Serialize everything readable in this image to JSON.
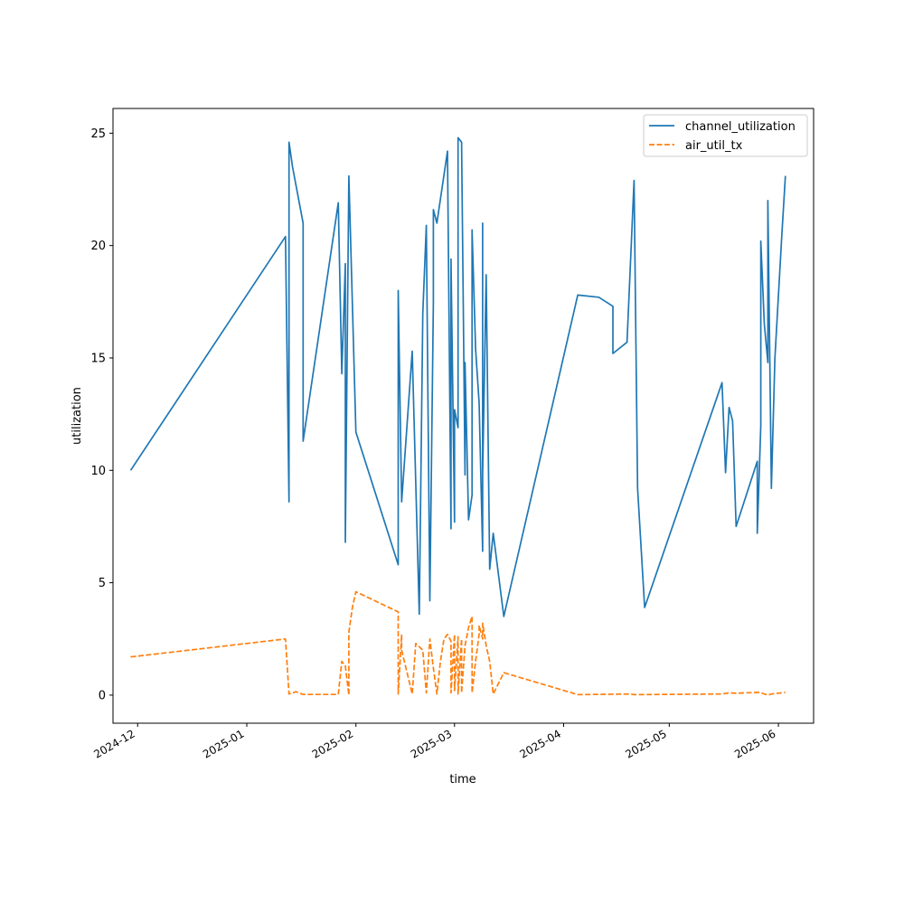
{
  "chart_data": {
    "type": "line",
    "xlabel": "time",
    "ylabel": "utilization",
    "xlim": [
      "2024-11-24",
      "2025-06-11"
    ],
    "ylim": [
      -1.25,
      26.1
    ],
    "x_ticks": [
      {
        "date": "2024-12-01",
        "label": "2024-12"
      },
      {
        "date": "2025-01-01",
        "label": "2025-01"
      },
      {
        "date": "2025-02-01",
        "label": "2025-02"
      },
      {
        "date": "2025-03-01",
        "label": "2025-03"
      },
      {
        "date": "2025-04-01",
        "label": "2025-04"
      },
      {
        "date": "2025-05-01",
        "label": "2025-05"
      },
      {
        "date": "2025-06-01",
        "label": "2025-06"
      }
    ],
    "y_ticks": [
      0,
      5,
      10,
      15,
      20,
      25
    ],
    "grid": false,
    "legend_position": "top-right",
    "series": [
      {
        "name": "channel_utilization",
        "color": "#1f77b4",
        "style": "solid",
        "points": [
          [
            "2024-11-29",
            10.0
          ],
          [
            "2025-01-12",
            20.4
          ],
          [
            "2025-01-13",
            8.6
          ],
          [
            "2025-01-13",
            24.6
          ],
          [
            "2025-01-14",
            23.5
          ],
          [
            "2025-01-17",
            21.0
          ],
          [
            "2025-01-17",
            11.3
          ],
          [
            "2025-01-27",
            21.9
          ],
          [
            "2025-01-28",
            14.3
          ],
          [
            "2025-01-29",
            19.2
          ],
          [
            "2025-01-29",
            6.8
          ],
          [
            "2025-01-30",
            23.1
          ],
          [
            "2025-02-01",
            11.7
          ],
          [
            "2025-02-13",
            5.8
          ],
          [
            "2025-02-13",
            18.0
          ],
          [
            "2025-02-14",
            8.6
          ],
          [
            "2025-02-17",
            15.3
          ],
          [
            "2025-02-19",
            3.6
          ],
          [
            "2025-02-20",
            17.0
          ],
          [
            "2025-02-21",
            20.9
          ],
          [
            "2025-02-22",
            4.2
          ],
          [
            "2025-02-23",
            17.5
          ],
          [
            "2025-02-23",
            21.6
          ],
          [
            "2025-02-24",
            21.0
          ],
          [
            "2025-02-27",
            24.2
          ],
          [
            "2025-02-28",
            7.4
          ],
          [
            "2025-02-28",
            19.4
          ],
          [
            "2025-03-01",
            7.7
          ],
          [
            "2025-03-01",
            12.7
          ],
          [
            "2025-03-02",
            11.9
          ],
          [
            "2025-03-02",
            24.8
          ],
          [
            "2025-03-03",
            24.6
          ],
          [
            "2025-03-04",
            9.8
          ],
          [
            "2025-03-04",
            14.8
          ],
          [
            "2025-03-05",
            7.8
          ],
          [
            "2025-03-06",
            8.9
          ],
          [
            "2025-03-06",
            20.7
          ],
          [
            "2025-03-07",
            15.4
          ],
          [
            "2025-03-08",
            13.0
          ],
          [
            "2025-03-09",
            6.4
          ],
          [
            "2025-03-09",
            21.0
          ],
          [
            "2025-03-09",
            9.8
          ],
          [
            "2025-03-10",
            18.7
          ],
          [
            "2025-03-11",
            5.6
          ],
          [
            "2025-03-12",
            7.2
          ],
          [
            "2025-03-15",
            3.5
          ],
          [
            "2025-04-05",
            17.8
          ],
          [
            "2025-04-11",
            17.7
          ],
          [
            "2025-04-15",
            17.3
          ],
          [
            "2025-04-15",
            15.2
          ],
          [
            "2025-04-19",
            15.7
          ],
          [
            "2025-04-21",
            22.9
          ],
          [
            "2025-04-22",
            9.2
          ],
          [
            "2025-04-24",
            3.9
          ],
          [
            "2025-05-16",
            13.9
          ],
          [
            "2025-05-17",
            9.9
          ],
          [
            "2025-05-18",
            12.8
          ],
          [
            "2025-05-19",
            12.2
          ],
          [
            "2025-05-20",
            7.5
          ],
          [
            "2025-05-26",
            10.4
          ],
          [
            "2025-05-26",
            7.2
          ],
          [
            "2025-05-27",
            12.0
          ],
          [
            "2025-05-27",
            20.2
          ],
          [
            "2025-05-28",
            16.5
          ],
          [
            "2025-05-29",
            14.8
          ],
          [
            "2025-05-29",
            22.0
          ],
          [
            "2025-05-30",
            9.2
          ],
          [
            "2025-05-31",
            15.0
          ],
          [
            "2025-06-02",
            20.5
          ],
          [
            "2025-06-03",
            23.1
          ]
        ]
      },
      {
        "name": "air_util_tx",
        "color": "#ff7f0e",
        "style": "dashed",
        "points": [
          [
            "2024-11-29",
            1.7
          ],
          [
            "2025-01-12",
            2.5
          ],
          [
            "2025-01-13",
            0.05
          ],
          [
            "2025-01-15",
            0.15
          ],
          [
            "2025-01-17",
            0.03
          ],
          [
            "2025-01-27",
            0.03
          ],
          [
            "2025-01-28",
            1.5
          ],
          [
            "2025-01-29",
            1.3
          ],
          [
            "2025-01-30",
            0.0
          ],
          [
            "2025-01-30",
            2.8
          ],
          [
            "2025-01-31",
            3.9
          ],
          [
            "2025-02-01",
            4.6
          ],
          [
            "2025-02-13",
            3.7
          ],
          [
            "2025-02-13",
            0.05
          ],
          [
            "2025-02-14",
            2.7
          ],
          [
            "2025-02-14",
            2.0
          ],
          [
            "2025-02-17",
            0.05
          ],
          [
            "2025-02-18",
            2.3
          ],
          [
            "2025-02-20",
            2.0
          ],
          [
            "2025-02-21",
            0.1
          ],
          [
            "2025-02-22",
            2.5
          ],
          [
            "2025-02-23",
            1.2
          ],
          [
            "2025-02-24",
            0.05
          ],
          [
            "2025-02-25",
            1.5
          ],
          [
            "2025-02-26",
            2.5
          ],
          [
            "2025-02-27",
            2.7
          ],
          [
            "2025-02-28",
            2.4
          ],
          [
            "2025-02-28",
            0.1
          ],
          [
            "2025-03-01",
            2.7
          ],
          [
            "2025-03-01",
            0.2
          ],
          [
            "2025-03-02",
            2.6
          ],
          [
            "2025-03-02",
            0.05
          ],
          [
            "2025-03-03",
            2.5
          ],
          [
            "2025-03-03",
            0.1
          ],
          [
            "2025-03-04",
            2.2
          ],
          [
            "2025-03-05",
            3.0
          ],
          [
            "2025-03-06",
            3.5
          ],
          [
            "2025-03-06",
            0.1
          ],
          [
            "2025-03-07",
            1.5
          ],
          [
            "2025-03-08",
            2.7
          ],
          [
            "2025-03-08",
            3.1
          ],
          [
            "2025-03-09",
            2.5
          ],
          [
            "2025-03-09",
            3.2
          ],
          [
            "2025-03-10",
            2.2
          ],
          [
            "2025-03-11",
            1.5
          ],
          [
            "2025-03-12",
            0.05
          ],
          [
            "2025-03-15",
            1.0
          ],
          [
            "2025-04-05",
            0.02
          ],
          [
            "2025-04-20",
            0.05
          ],
          [
            "2025-04-21",
            0.02
          ],
          [
            "2025-05-16",
            0.05
          ],
          [
            "2025-05-18",
            0.1
          ],
          [
            "2025-05-20",
            0.08
          ],
          [
            "2025-05-26",
            0.12
          ],
          [
            "2025-05-27",
            0.1
          ],
          [
            "2025-05-29",
            0.0
          ],
          [
            "2025-05-30",
            0.05
          ],
          [
            "2025-06-03",
            0.12
          ]
        ]
      }
    ]
  }
}
